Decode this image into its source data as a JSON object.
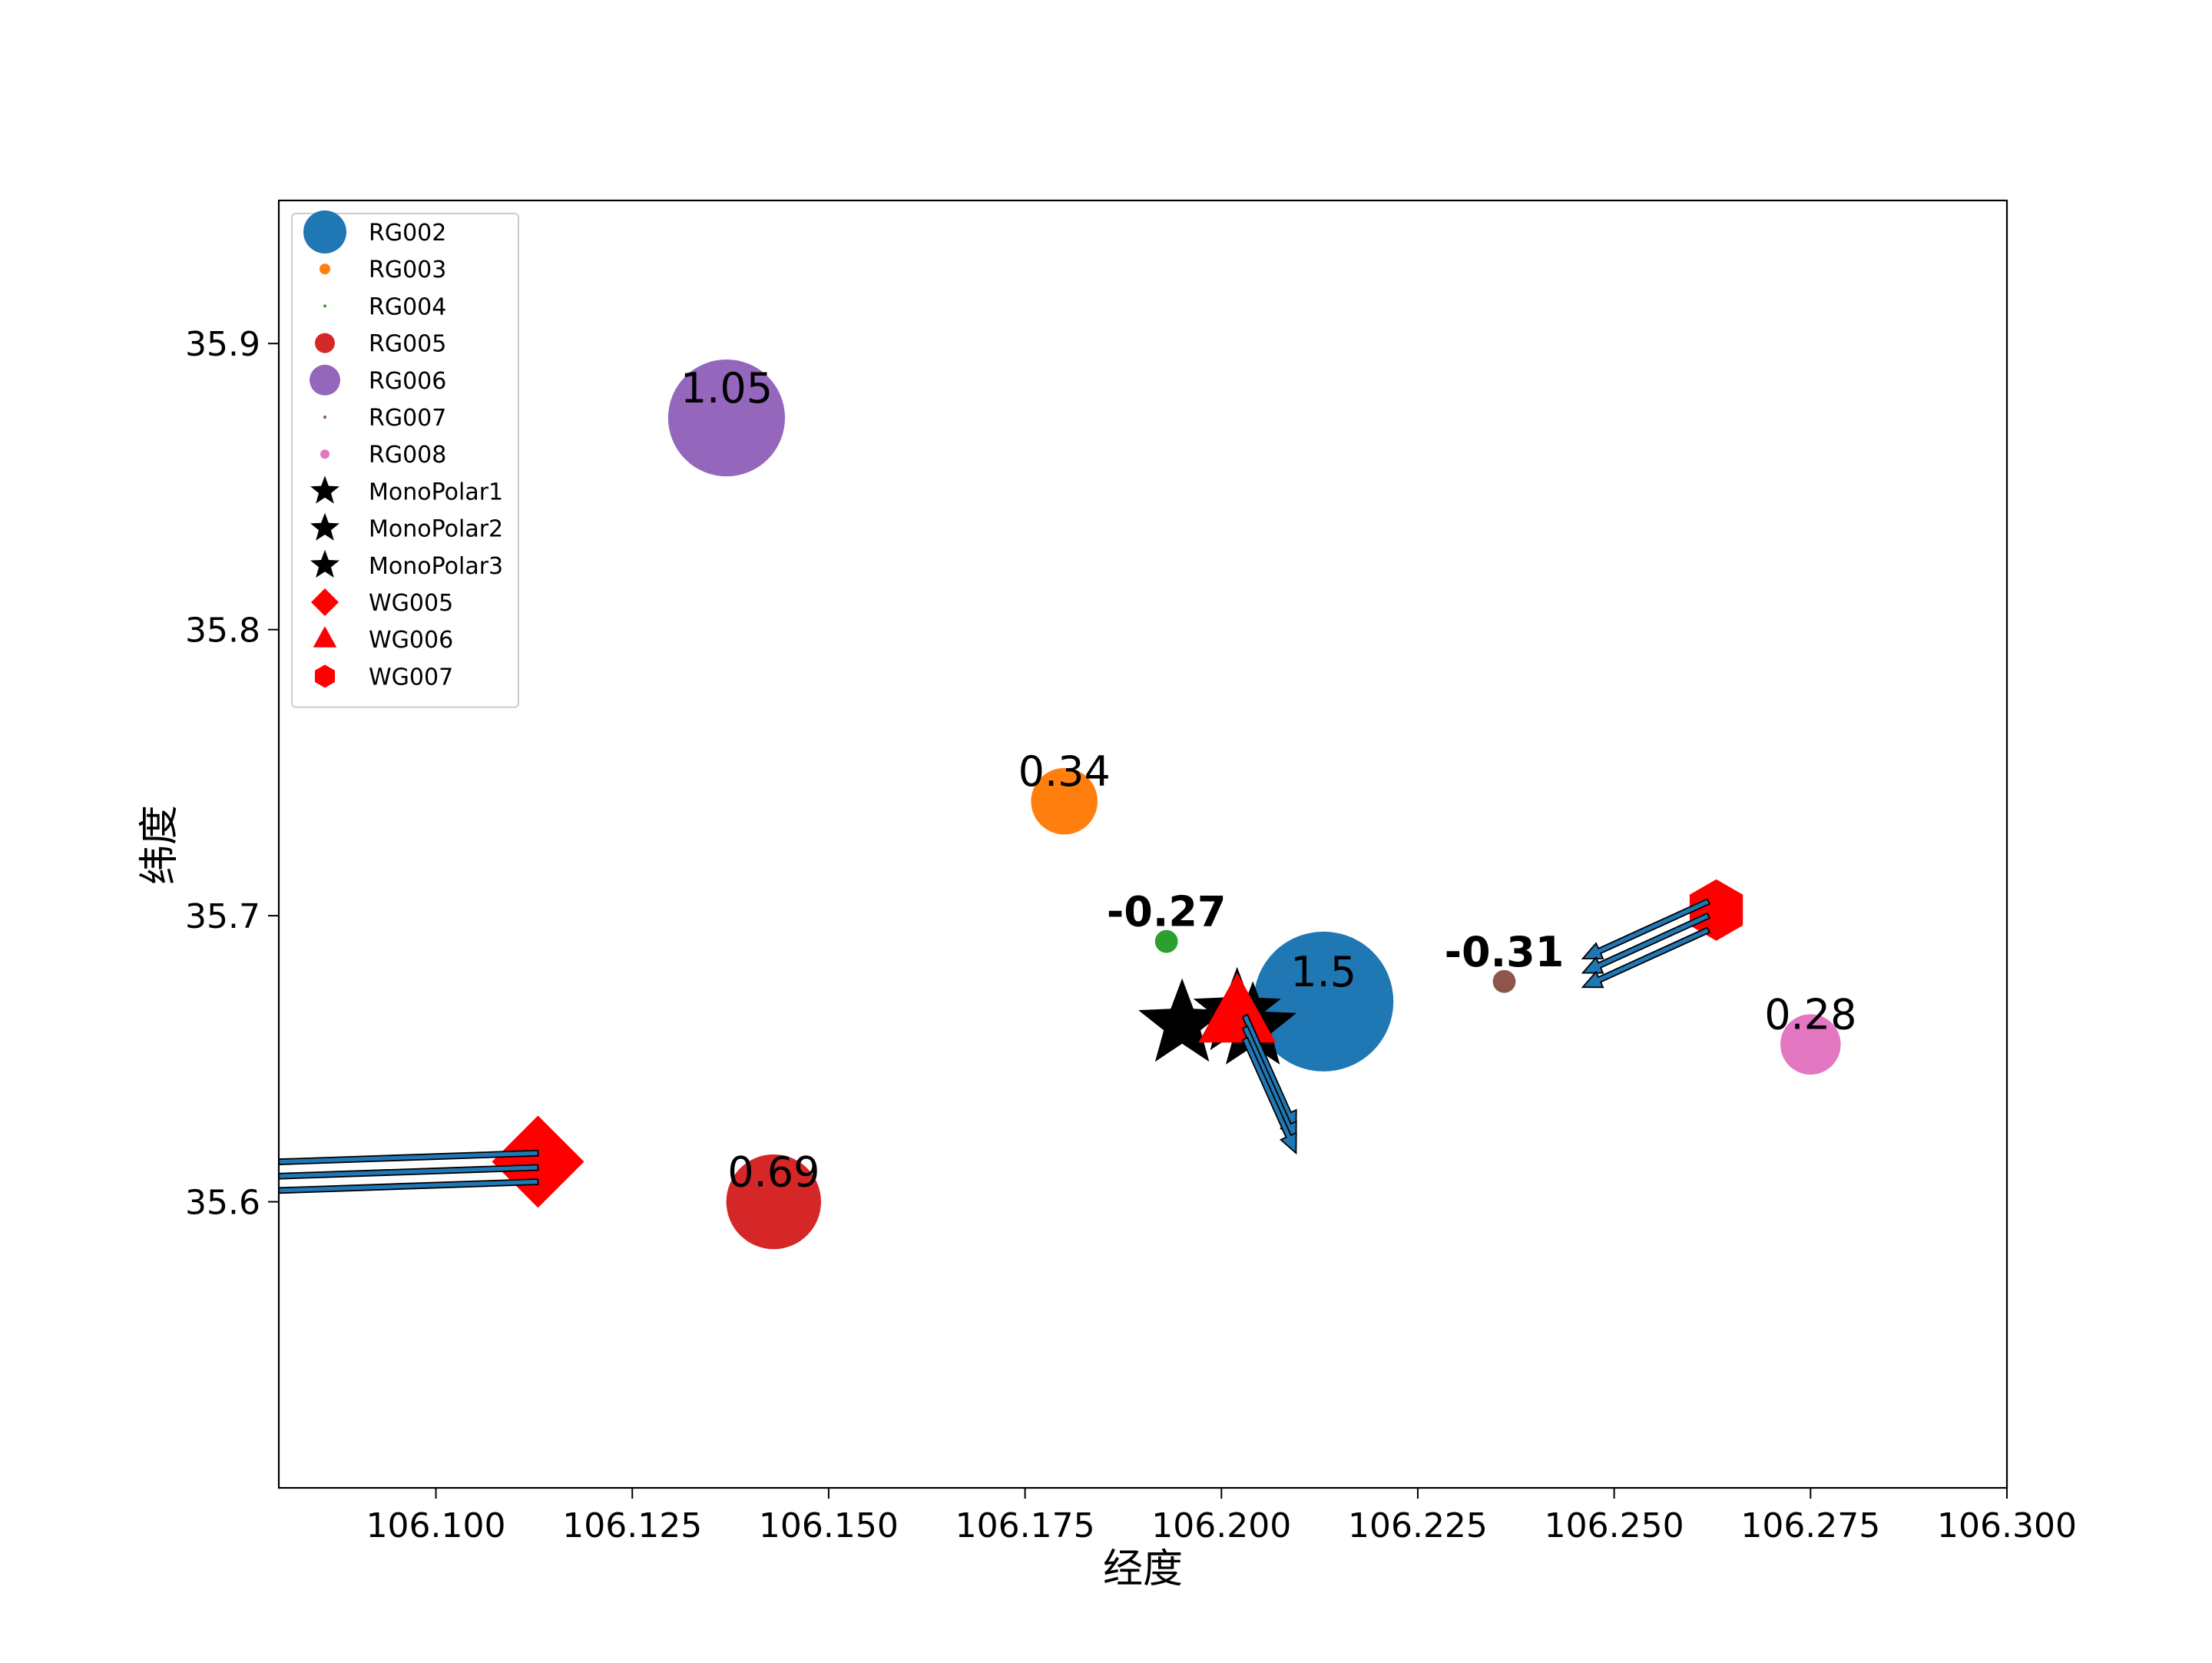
{
  "chart_data": {
    "type": "scatter",
    "title": "",
    "xlabel": "经度",
    "ylabel": "纬度",
    "xlim": [
      106.08,
      106.3
    ],
    "ylim": [
      35.5,
      35.95
    ],
    "xticks": [
      {
        "v": 106.1,
        "label": "106.100"
      },
      {
        "v": 106.125,
        "label": "106.125"
      },
      {
        "v": 106.15,
        "label": "106.150"
      },
      {
        "v": 106.175,
        "label": "106.175"
      },
      {
        "v": 106.2,
        "label": "106.200"
      },
      {
        "v": 106.225,
        "label": "106.225"
      },
      {
        "v": 106.25,
        "label": "106.250"
      },
      {
        "v": 106.275,
        "label": "106.275"
      },
      {
        "v": 106.3,
        "label": "106.300"
      }
    ],
    "yticks": [
      {
        "v": 35.6,
        "label": "35.6"
      },
      {
        "v": 35.7,
        "label": "35.7"
      },
      {
        "v": 35.8,
        "label": "35.8"
      },
      {
        "v": 35.9,
        "label": "35.9"
      }
    ],
    "grid": false,
    "legend_position": "top-left",
    "stations": [
      {
        "name": "RG002",
        "x": 106.213,
        "y": 35.67,
        "value": 1.5,
        "label": "1.5",
        "color": "#1f77b4",
        "size": 1.5,
        "bold": false
      },
      {
        "name": "RG003",
        "x": 106.18,
        "y": 35.74,
        "value": 0.34,
        "label": "0.34",
        "color": "#ff7f0e",
        "size": 0.34,
        "bold": false
      },
      {
        "name": "RG004",
        "x": 106.193,
        "y": 35.691,
        "value": -0.27,
        "label": "-0.27",
        "color": "#2ca02c",
        "size": 0.04,
        "bold": true
      },
      {
        "name": "RG005",
        "x": 106.143,
        "y": 35.6,
        "value": 0.69,
        "label": "0.69",
        "color": "#d62728",
        "size": 0.69,
        "bold": false
      },
      {
        "name": "RG006",
        "x": 106.137,
        "y": 35.874,
        "value": 1.05,
        "label": "1.05",
        "color": "#9467bd",
        "size": 1.05,
        "bold": false
      },
      {
        "name": "RG007",
        "x": 106.236,
        "y": 35.677,
        "value": -0.31,
        "label": "-0.31",
        "color": "#8c564b",
        "size": 0.04,
        "bold": true
      },
      {
        "name": "RG008",
        "x": 106.275,
        "y": 35.655,
        "value": 0.28,
        "label": "0.28",
        "color": "#e377c2",
        "size": 0.28,
        "bold": false
      }
    ],
    "monopolars": [
      {
        "name": "MonoPolar1",
        "x": 106.195,
        "y": 35.662,
        "color": "#000000"
      },
      {
        "name": "MonoPolar2",
        "x": 106.202,
        "y": 35.666,
        "color": "#000000"
      },
      {
        "name": "MonoPolar3",
        "x": 106.204,
        "y": 35.661,
        "color": "#000000"
      }
    ],
    "wells": [
      {
        "name": "WG005",
        "x": 106.113,
        "y": 35.614,
        "marker": "diamond",
        "color": "#ff0000"
      },
      {
        "name": "WG006",
        "x": 106.202,
        "y": 35.665,
        "marker": "triangle",
        "color": "#ff0000"
      },
      {
        "name": "WG007",
        "x": 106.263,
        "y": 35.702,
        "marker": "hexagon",
        "color": "#ff0000"
      }
    ],
    "arrows": [
      {
        "x": 106.113,
        "y": 35.617,
        "dx": -0.065,
        "dy": -0.006
      },
      {
        "x": 106.113,
        "y": 35.612,
        "dx": -0.065,
        "dy": -0.006
      },
      {
        "x": 106.113,
        "y": 35.607,
        "dx": -0.065,
        "dy": -0.006
      },
      {
        "x": 106.262,
        "y": 35.705,
        "dx": -0.016,
        "dy": -0.02
      },
      {
        "x": 106.262,
        "y": 35.7,
        "dx": -0.016,
        "dy": -0.02
      },
      {
        "x": 106.262,
        "y": 35.695,
        "dx": -0.016,
        "dy": -0.02
      },
      {
        "x": 106.203,
        "y": 35.665,
        "dx": 0.0065,
        "dy": -0.04
      },
      {
        "x": 106.203,
        "y": 35.661,
        "dx": 0.0065,
        "dy": -0.04
      },
      {
        "x": 106.203,
        "y": 35.657,
        "dx": 0.0065,
        "dy": -0.04
      }
    ],
    "arrow_color": "#1f77b4",
    "legend": [
      {
        "label": "RG002",
        "marker": "circle",
        "color": "#1f77b4",
        "r": 28
      },
      {
        "label": "RG003",
        "marker": "circle",
        "color": "#ff7f0e",
        "r": 7
      },
      {
        "label": "RG004",
        "marker": "circle",
        "color": "#2ca02c",
        "r": 2
      },
      {
        "label": "RG005",
        "marker": "circle",
        "color": "#d62728",
        "r": 13
      },
      {
        "label": "RG006",
        "marker": "circle",
        "color": "#9467bd",
        "r": 20
      },
      {
        "label": "RG007",
        "marker": "circle",
        "color": "#8c564b",
        "r": 2
      },
      {
        "label": "RG008",
        "marker": "circle",
        "color": "#e377c2",
        "r": 6
      },
      {
        "label": "MonoPolar1",
        "marker": "star",
        "color": "#000000",
        "r": 20
      },
      {
        "label": "MonoPolar2",
        "marker": "star",
        "color": "#000000",
        "r": 20
      },
      {
        "label": "MonoPolar3",
        "marker": "star",
        "color": "#000000",
        "r": 20
      },
      {
        "label": "WG005",
        "marker": "diamond",
        "color": "#ff0000",
        "r": 18
      },
      {
        "label": "WG006",
        "marker": "triangle",
        "color": "#ff0000",
        "r": 17
      },
      {
        "label": "WG007",
        "marker": "hexagon",
        "color": "#ff0000",
        "r": 15
      }
    ]
  }
}
